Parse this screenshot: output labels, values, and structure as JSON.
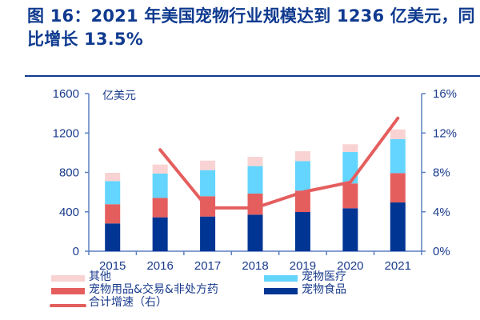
{
  "title": "图 16：2021 年美国宠物行业规模达到 1236 亿美元，同比增长 13.5%",
  "chart_data": {
    "type": "bar",
    "stacked": true,
    "title": "图 16：2021 年美国宠物行业规模达到 1236 亿美元，同比增长 13.5%",
    "unit_label": "亿美元",
    "categories": [
      "2015",
      "2016",
      "2017",
      "2018",
      "2019",
      "2020",
      "2021"
    ],
    "ylim": [
      0,
      1600
    ],
    "yticks": [
      "0",
      "400",
      "800",
      "1200",
      "1600"
    ],
    "y2lim": [
      0,
      16
    ],
    "y2ticks": [
      "0%",
      "4%",
      "8%",
      "12%",
      "16%"
    ],
    "series": [
      {
        "name": "宠物食品",
        "color": "#003594",
        "values": [
          282,
          344,
          352,
          371,
          398,
          436,
          495
        ]
      },
      {
        "name": "宠物用品&交易&非处方药",
        "color": "#e55e5e",
        "values": [
          195,
          198,
          206,
          214,
          217,
          252,
          298
        ]
      },
      {
        "name": "宠物医疗",
        "color": "#63d5ff",
        "values": [
          235,
          246,
          265,
          279,
          299,
          319,
          344
        ]
      },
      {
        "name": "其他",
        "color": "#f9d3d3",
        "values": [
          84,
          92,
          97,
          94,
          101,
          79,
          99
        ]
      }
    ],
    "line": {
      "name": "合计增速（右）",
      "color": "#e55e5e",
      "axis": "right",
      "values": [
        null,
        10.3,
        4.4,
        4.4,
        6.0,
        7.0,
        13.5
      ]
    },
    "legend": {
      "position": "bottom",
      "items": [
        {
          "label": "其他",
          "color": "#f9d3d3",
          "kind": "bar"
        },
        {
          "label": "宠物医疗",
          "color": "#63d5ff",
          "kind": "bar"
        },
        {
          "label": "宠物用品&交易&非处方药",
          "color": "#e55e5e",
          "kind": "bar"
        },
        {
          "label": "宠物食品",
          "color": "#003594",
          "kind": "bar"
        },
        {
          "label": "合计增速（右）",
          "color": "#e55e5e",
          "kind": "line"
        }
      ]
    },
    "grid": false
  }
}
